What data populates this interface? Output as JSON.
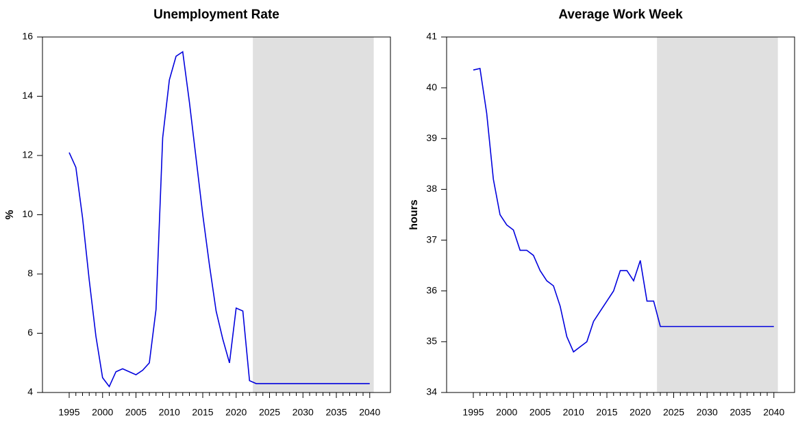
{
  "chart_data": [
    {
      "type": "line",
      "title": "Unemployment Rate",
      "ylabel": "%",
      "x": [
        1995,
        1996,
        1997,
        1998,
        1999,
        2000,
        2001,
        2002,
        2003,
        2004,
        2005,
        2006,
        2007,
        2008,
        2009,
        2010,
        2011,
        2012,
        2013,
        2014,
        2015,
        2016,
        2017,
        2018,
        2019,
        2020,
        2021,
        2022,
        2023,
        2024,
        2025,
        2026,
        2027,
        2028,
        2029,
        2030,
        2031,
        2032,
        2033,
        2034,
        2035,
        2036,
        2037,
        2038,
        2039,
        2040
      ],
      "series": [
        {
          "color": "#0000dd",
          "values": [
            12.1,
            11.6,
            9.9,
            7.8,
            5.9,
            4.5,
            4.2,
            4.7,
            4.8,
            4.7,
            4.6,
            4.75,
            5.0,
            6.8,
            12.6,
            14.55,
            15.35,
            15.5,
            13.8,
            11.9,
            10.0,
            8.3,
            6.75,
            5.8,
            5.0,
            6.85,
            6.75,
            4.4,
            4.3,
            4.3,
            4.3,
            4.3,
            4.3,
            4.3,
            4.3,
            4.3,
            4.3,
            4.3,
            4.3,
            4.3,
            4.3,
            4.3,
            4.3,
            4.3,
            4.3,
            4.3
          ]
        }
      ],
      "xlim": [
        1991,
        2043.1
      ],
      "xticks": [
        1995,
        2000,
        2005,
        2010,
        2015,
        2020,
        2025,
        2030,
        2035,
        2040
      ],
      "ylim": [
        4,
        16
      ],
      "yticks": [
        4,
        6,
        8,
        10,
        12,
        14,
        16
      ],
      "shaded_region": [
        2022.5,
        2040.6
      ],
      "shade_color": "#e0e0e0"
    },
    {
      "type": "line",
      "title": "Average Work Week",
      "ylabel": "hours",
      "x": [
        1995,
        1996,
        1997,
        1998,
        1999,
        2000,
        2001,
        2002,
        2003,
        2004,
        2005,
        2006,
        2007,
        2008,
        2009,
        2010,
        2011,
        2012,
        2013,
        2014,
        2015,
        2016,
        2017,
        2018,
        2019,
        2020,
        2021,
        2022,
        2023,
        2024,
        2025,
        2026,
        2027,
        2028,
        2029,
        2030,
        2031,
        2032,
        2033,
        2034,
        2035,
        2036,
        2037,
        2038,
        2039,
        2040
      ],
      "series": [
        {
          "color": "#0000dd",
          "values": [
            40.35,
            40.38,
            39.5,
            38.2,
            37.5,
            37.3,
            37.2,
            36.8,
            36.8,
            36.7,
            36.4,
            36.2,
            36.1,
            35.7,
            35.1,
            34.8,
            34.9,
            35.0,
            35.4,
            35.6,
            35.8,
            36.0,
            36.4,
            36.4,
            36.2,
            36.6,
            35.8,
            35.8,
            35.3,
            35.3,
            35.3,
            35.3,
            35.3,
            35.3,
            35.3,
            35.3,
            35.3,
            35.3,
            35.3,
            35.3,
            35.3,
            35.3,
            35.3,
            35.3,
            35.3,
            35.3
          ]
        }
      ],
      "xlim": [
        1991,
        2043.1
      ],
      "xticks": [
        1995,
        2000,
        2005,
        2010,
        2015,
        2020,
        2025,
        2030,
        2035,
        2040
      ],
      "ylim": [
        34,
        41
      ],
      "yticks": [
        34,
        35,
        36,
        37,
        38,
        39,
        40,
        41
      ],
      "shaded_region": [
        2022.5,
        2040.6
      ],
      "shade_color": "#e0e0e0"
    }
  ]
}
